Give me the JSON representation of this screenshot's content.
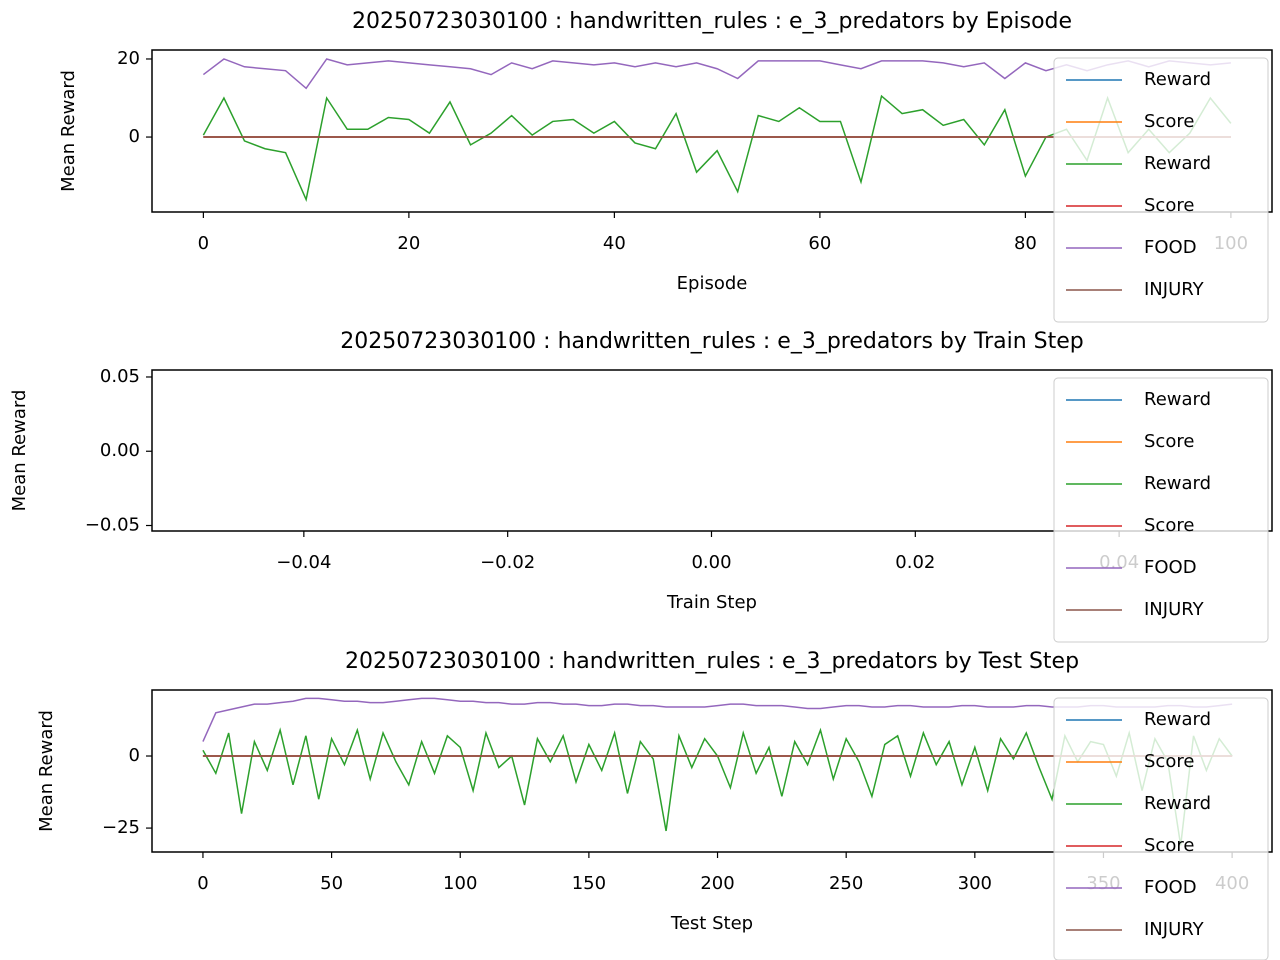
{
  "chart_data": [
    {
      "type": "line",
      "title": "20250723030100 : handwritten_rules : e_3_predators by Episode",
      "x_label": "Episode",
      "y_label": "Mean Reward",
      "x": [
        0,
        2,
        4,
        6,
        8,
        10,
        12,
        14,
        16,
        18,
        20,
        22,
        24,
        26,
        28,
        30,
        32,
        34,
        36,
        38,
        40,
        42,
        44,
        46,
        48,
        50,
        52,
        54,
        56,
        58,
        60,
        62,
        64,
        66,
        68,
        70,
        72,
        74,
        76,
        78,
        80,
        82,
        84,
        86,
        88,
        90,
        92,
        94,
        96,
        98,
        100
      ],
      "xlim": [
        -5,
        104
      ],
      "ylim": [
        -19.2,
        22.3
      ],
      "xticks": [
        0,
        20,
        40,
        60,
        80,
        100
      ],
      "yticks": [
        0,
        20
      ],
      "legend": "upper right",
      "series": [
        {
          "name": "Reward",
          "color": "#1f77b4",
          "values": [
            0,
            0,
            0,
            0,
            0,
            0,
            0,
            0,
            0,
            0,
            0,
            0,
            0,
            0,
            0,
            0,
            0,
            0,
            0,
            0,
            0,
            0,
            0,
            0,
            0,
            0,
            0,
            0,
            0,
            0,
            0,
            0,
            0,
            0,
            0,
            0,
            0,
            0,
            0,
            0,
            0,
            0,
            0,
            0,
            0,
            0,
            0,
            0,
            0,
            0,
            0
          ]
        },
        {
          "name": "Score",
          "color": "#ff7f0e",
          "values": [
            0,
            0,
            0,
            0,
            0,
            0,
            0,
            0,
            0,
            0,
            0,
            0,
            0,
            0,
            0,
            0,
            0,
            0,
            0,
            0,
            0,
            0,
            0,
            0,
            0,
            0,
            0,
            0,
            0,
            0,
            0,
            0,
            0,
            0,
            0,
            0,
            0,
            0,
            0,
            0,
            0,
            0,
            0,
            0,
            0,
            0,
            0,
            0,
            0,
            0,
            0
          ]
        },
        {
          "name": "Reward",
          "color": "#2ca02c",
          "values": [
            0.5,
            10,
            -1,
            -3,
            -4,
            -16,
            10,
            2,
            2,
            5,
            4.5,
            1,
            9,
            -2,
            1,
            5.5,
            0.5,
            4,
            4.5,
            1,
            4,
            -1.5,
            -3,
            6,
            -9,
            -3.5,
            -14,
            5.5,
            4,
            7.5,
            4,
            4,
            -11.5,
            10.5,
            6,
            7,
            3,
            4.5,
            -2,
            7,
            -10,
            0,
            2,
            -6,
            10,
            -4,
            2,
            -4,
            1,
            10,
            3.5
          ]
        },
        {
          "name": "Score",
          "color": "#d62728",
          "values": [
            0,
            0,
            0,
            0,
            0,
            0,
            0,
            0,
            0,
            0,
            0,
            0,
            0,
            0,
            0,
            0,
            0,
            0,
            0,
            0,
            0,
            0,
            0,
            0,
            0,
            0,
            0,
            0,
            0,
            0,
            0,
            0,
            0,
            0,
            0,
            0,
            0,
            0,
            0,
            0,
            0,
            0,
            0,
            0,
            0,
            0,
            0,
            0,
            0,
            0,
            0
          ]
        },
        {
          "name": "FOOD",
          "color": "#9467bd",
          "values": [
            16,
            20,
            18,
            17.5,
            17,
            12.5,
            20,
            18.5,
            19,
            19.5,
            19,
            18.5,
            18,
            17.5,
            16,
            19,
            17.5,
            19.5,
            19,
            18.5,
            19,
            18,
            19,
            18,
            19,
            17.5,
            15,
            19.5,
            19.5,
            19.5,
            19.5,
            18.5,
            17.5,
            19.5,
            19.5,
            19.5,
            19,
            18,
            19,
            15,
            19,
            17,
            18.5,
            17,
            18.5,
            19.5,
            18,
            19.5,
            19,
            18.5,
            19
          ]
        },
        {
          "name": "INJURY",
          "color": "#8c564b",
          "values": [
            0,
            0,
            0,
            0,
            0,
            0,
            0,
            0,
            0,
            0,
            0,
            0,
            0,
            0,
            0,
            0,
            0,
            0,
            0,
            0,
            0,
            0,
            0,
            0,
            0,
            0,
            0,
            0,
            0,
            0,
            0,
            0,
            0,
            0,
            0,
            0,
            0,
            0,
            0,
            0,
            0,
            0,
            0,
            0,
            0,
            0,
            0,
            0,
            0,
            0,
            0
          ]
        }
      ]
    },
    {
      "type": "line",
      "title": "20250723030100 : handwritten_rules : e_3_predators by Train Step",
      "x_label": "Train Step",
      "y_label": "Mean Reward",
      "x": [],
      "xlim": [
        -0.0549,
        0.055
      ],
      "ylim": [
        -0.0537,
        0.0547
      ],
      "xticks": [
        {
          "value": -0.04,
          "label": "−0.04"
        },
        {
          "value": -0.02,
          "label": "−0.02"
        },
        {
          "value": 0,
          "label": "0.00"
        },
        {
          "value": 0.02,
          "label": "0.02"
        },
        {
          "value": 0.04,
          "label": "0.04"
        }
      ],
      "yticks": [
        {
          "value": -0.05,
          "label": "−0.05"
        },
        {
          "value": 0,
          "label": "0.00"
        },
        {
          "value": 0.05,
          "label": "0.05"
        }
      ],
      "legend": "upper right",
      "series": [
        {
          "name": "Reward",
          "color": "#1f77b4",
          "values": []
        },
        {
          "name": "Score",
          "color": "#ff7f0e",
          "values": []
        },
        {
          "name": "Reward",
          "color": "#2ca02c",
          "values": []
        },
        {
          "name": "Score",
          "color": "#d62728",
          "values": []
        },
        {
          "name": "FOOD",
          "color": "#9467bd",
          "values": []
        },
        {
          "name": "INJURY",
          "color": "#8c564b",
          "values": []
        }
      ]
    },
    {
      "type": "line",
      "title": "20250723030100 : handwritten_rules : e_3_predators by Test Step",
      "x_label": "Test Step",
      "y_label": "Mean Reward",
      "x": [
        0,
        5,
        10,
        15,
        20,
        25,
        30,
        35,
        40,
        45,
        50,
        55,
        60,
        65,
        70,
        75,
        80,
        85,
        90,
        95,
        100,
        105,
        110,
        115,
        120,
        125,
        130,
        135,
        140,
        145,
        150,
        155,
        160,
        165,
        170,
        175,
        180,
        185,
        190,
        195,
        200,
        205,
        210,
        215,
        220,
        225,
        230,
        235,
        240,
        245,
        250,
        255,
        260,
        265,
        270,
        275,
        280,
        285,
        290,
        295,
        300,
        305,
        310,
        315,
        320,
        325,
        330,
        335,
        340,
        345,
        350,
        355,
        360,
        365,
        370,
        375,
        380,
        385,
        390,
        395,
        400
      ],
      "xlim": [
        -19.8,
        415.5
      ],
      "ylim": [
        -33.3,
        22.9
      ],
      "xticks": [
        0,
        50,
        100,
        150,
        200,
        250,
        300,
        350,
        400
      ],
      "yticks": [
        {
          "value": -25,
          "label": "−25"
        },
        0
      ],
      "legend": "upper right",
      "series": [
        {
          "name": "Reward",
          "color": "#1f77b4",
          "values": [
            0,
            0,
            0,
            0,
            0,
            0,
            0,
            0,
            0,
            0,
            0,
            0,
            0,
            0,
            0,
            0,
            0,
            0,
            0,
            0,
            0,
            0,
            0,
            0,
            0,
            0,
            0,
            0,
            0,
            0,
            0,
            0,
            0,
            0,
            0,
            0,
            0,
            0,
            0,
            0,
            0,
            0,
            0,
            0,
            0,
            0,
            0,
            0,
            0,
            0,
            0,
            0,
            0,
            0,
            0,
            0,
            0,
            0,
            0,
            0,
            0,
            0,
            0,
            0,
            0,
            0,
            0,
            0,
            0,
            0,
            0,
            0,
            0,
            0,
            0,
            0,
            0,
            0,
            0,
            0,
            0
          ]
        },
        {
          "name": "Score",
          "color": "#ff7f0e",
          "values": [
            0,
            0,
            0,
            0,
            0,
            0,
            0,
            0,
            0,
            0,
            0,
            0,
            0,
            0,
            0,
            0,
            0,
            0,
            0,
            0,
            0,
            0,
            0,
            0,
            0,
            0,
            0,
            0,
            0,
            0,
            0,
            0,
            0,
            0,
            0,
            0,
            0,
            0,
            0,
            0,
            0,
            0,
            0,
            0,
            0,
            0,
            0,
            0,
            0,
            0,
            0,
            0,
            0,
            0,
            0,
            0,
            0,
            0,
            0,
            0,
            0,
            0,
            0,
            0,
            0,
            0,
            0,
            0,
            0,
            0,
            0,
            0,
            0,
            0,
            0,
            0,
            0,
            0,
            0,
            0,
            0
          ]
        },
        {
          "name": "Reward",
          "color": "#2ca02c",
          "values": [
            2,
            -6,
            8,
            -20,
            5,
            -5,
            9,
            -10,
            7,
            -15,
            6,
            -3,
            9,
            -8,
            8,
            -2,
            -10,
            5,
            -6,
            7,
            3,
            -12,
            8,
            -4,
            0,
            -17,
            6,
            -2,
            7,
            -9,
            4,
            -5,
            8,
            -13,
            5,
            -1,
            -26,
            7,
            -4,
            6,
            0,
            -11,
            8,
            -6,
            3,
            -14,
            5,
            -3,
            9,
            -8,
            6,
            -2,
            -14,
            4,
            7,
            -7,
            8,
            -3,
            5,
            -10,
            3,
            -12,
            6,
            -1,
            8,
            -4,
            -15,
            7,
            -2,
            5,
            4,
            -7,
            8,
            -12,
            6,
            -2,
            -31,
            7,
            -5,
            6,
            0
          ]
        },
        {
          "name": "Score",
          "color": "#d62728",
          "values": [
            0,
            0,
            0,
            0,
            0,
            0,
            0,
            0,
            0,
            0,
            0,
            0,
            0,
            0,
            0,
            0,
            0,
            0,
            0,
            0,
            0,
            0,
            0,
            0,
            0,
            0,
            0,
            0,
            0,
            0,
            0,
            0,
            0,
            0,
            0,
            0,
            0,
            0,
            0,
            0,
            0,
            0,
            0,
            0,
            0,
            0,
            0,
            0,
            0,
            0,
            0,
            0,
            0,
            0,
            0,
            0,
            0,
            0,
            0,
            0,
            0,
            0,
            0,
            0,
            0,
            0,
            0,
            0,
            0,
            0,
            0,
            0,
            0,
            0,
            0,
            0,
            0,
            0,
            0,
            0,
            0
          ]
        },
        {
          "name": "FOOD",
          "color": "#9467bd",
          "values": [
            5,
            15,
            16,
            17,
            18,
            18,
            18.5,
            19,
            20,
            20,
            19.5,
            19,
            19,
            18.5,
            18.5,
            19,
            19.5,
            20,
            20,
            19.5,
            19,
            19,
            18.5,
            18.5,
            18,
            18,
            18.5,
            18.5,
            18,
            18,
            17.5,
            17.5,
            18,
            18,
            17.5,
            17.5,
            17,
            17,
            17,
            17,
            17.5,
            18,
            18,
            17.5,
            17.5,
            17.5,
            17,
            16.5,
            16.5,
            17,
            17.5,
            17.5,
            17,
            17,
            17.5,
            17.5,
            17,
            17,
            17,
            17.5,
            17.5,
            17,
            17,
            17,
            17.5,
            17.5,
            17,
            17,
            17,
            17.5,
            17.5,
            17,
            17,
            17,
            17,
            17.5,
            17.5,
            17,
            17,
            17.5,
            18
          ]
        },
        {
          "name": "INJURY",
          "color": "#8c564b",
          "values": [
            0,
            0,
            0,
            0,
            0,
            0,
            0,
            0,
            0,
            0,
            0,
            0,
            0,
            0,
            0,
            0,
            0,
            0,
            0,
            0,
            0,
            0,
            0,
            0,
            0,
            0,
            0,
            0,
            0,
            0,
            0,
            0,
            0,
            0,
            0,
            0,
            0,
            0,
            0,
            0,
            0,
            0,
            0,
            0,
            0,
            0,
            0,
            0,
            0,
            0,
            0,
            0,
            0,
            0,
            0,
            0,
            0,
            0,
            0,
            0,
            0,
            0,
            0,
            0,
            0,
            0,
            0,
            0,
            0,
            0,
            0,
            0,
            0,
            0,
            0,
            0,
            0,
            0,
            0,
            0,
            0
          ]
        }
      ]
    }
  ]
}
